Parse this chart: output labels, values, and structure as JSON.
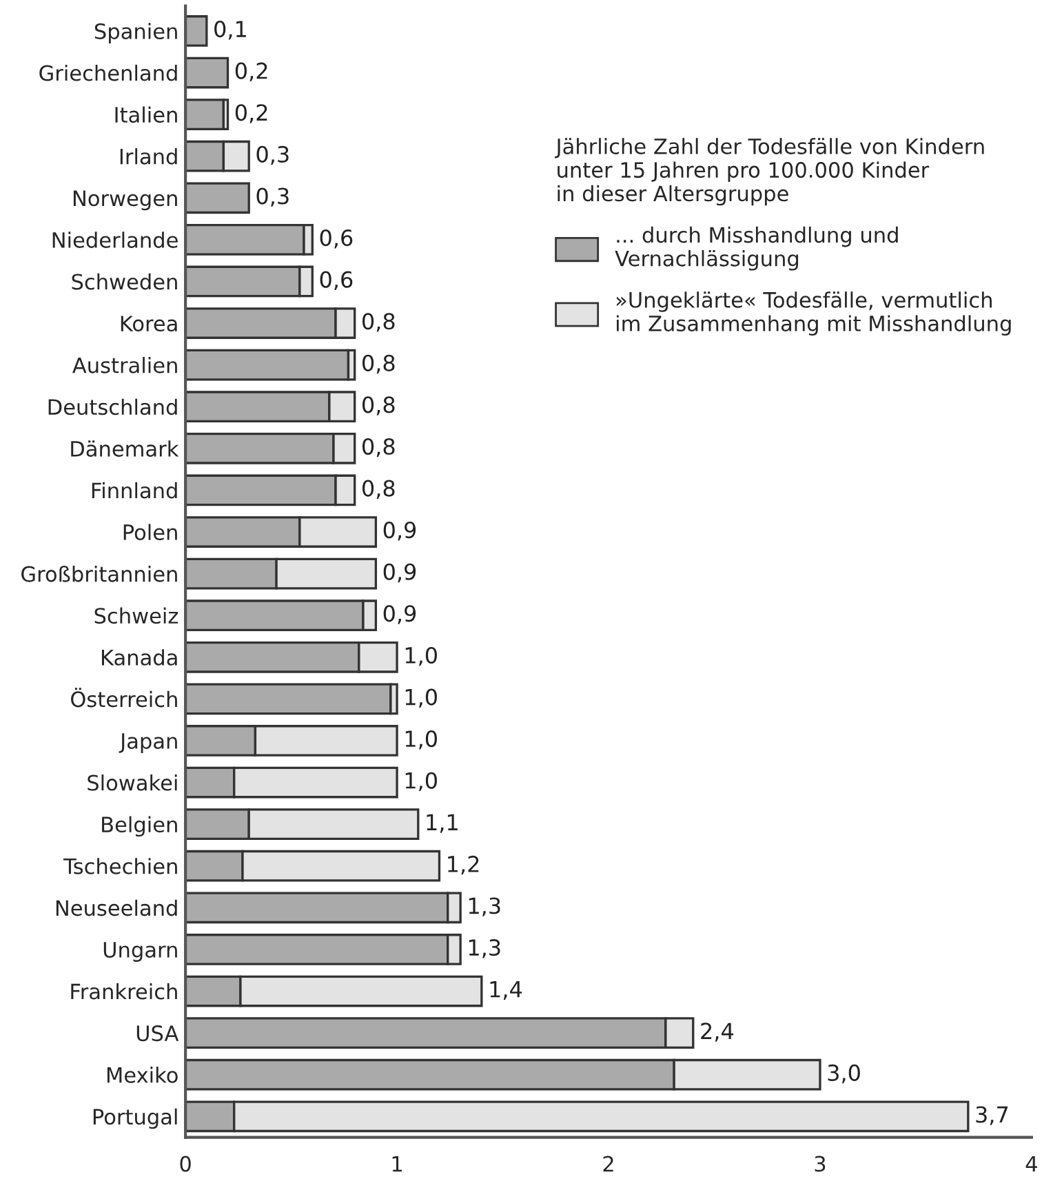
{
  "chart_data": {
    "type": "bar",
    "orientation": "horizontal",
    "stacked": true,
    "categories": [
      "Spanien",
      "Griechenland",
      "Italien",
      "Irland",
      "Norwegen",
      "Niederlande",
      "Schweden",
      "Korea",
      "Australien",
      "Deutschland",
      "Dänemark",
      "Finnland",
      "Polen",
      "Großbritannien",
      "Schweiz",
      "Kanada",
      "Österreich",
      "Japan",
      "Slowakei",
      "Belgien",
      "Tschechien",
      "Neuseeland",
      "Ungarn",
      "Frankreich",
      "USA",
      "Mexiko",
      "Portugal"
    ],
    "series": [
      {
        "name": "... durch Misshandlung und\nVernachlässigung",
        "color": "#aaaaaa",
        "values": [
          0.1,
          0.2,
          0.18,
          0.18,
          0.3,
          0.56,
          0.54,
          0.71,
          0.77,
          0.68,
          0.7,
          0.71,
          0.54,
          0.43,
          0.84,
          0.82,
          0.97,
          0.33,
          0.23,
          0.3,
          0.27,
          1.24,
          1.24,
          0.26,
          2.27,
          2.31,
          0.23
        ]
      },
      {
        "name": "»Ungeklärte« Todesfälle, vermutlich\nim Zusammenhang mit Misshandlung",
        "color": "#e3e3e3",
        "values": [
          null,
          null,
          0.02,
          0.12,
          null,
          0.04,
          0.06,
          0.09,
          0.03,
          0.12,
          0.1,
          0.09,
          0.36,
          0.47,
          0.06,
          0.18,
          0.03,
          0.67,
          0.77,
          0.8,
          0.93,
          0.06,
          0.06,
          1.14,
          0.13,
          0.69,
          3.47
        ]
      }
    ],
    "totals": [
      "0,1",
      "0,2",
      "0,2",
      "0,3",
      "0,3",
      "0,6",
      "0,6",
      "0,8",
      "0,8",
      "0,8",
      "0,8",
      "0,8",
      "0,9",
      "0,9",
      "0,9",
      "1,0",
      "1,0",
      "1,0",
      "1,0",
      "1,1",
      "1,2",
      "1,3",
      "1,3",
      "1,4",
      "2,4",
      "3,0",
      "3,7"
    ],
    "legend_title": "Jährliche Zahl der Todesfälle von Kindern\nunter 15 Jahren pro 100.000 Kinder\nin dieser Altersgruppe",
    "legend": "top right",
    "xlim": [
      0,
      4
    ],
    "xticks": [
      0,
      1,
      2,
      3,
      4
    ],
    "grid": false
  }
}
